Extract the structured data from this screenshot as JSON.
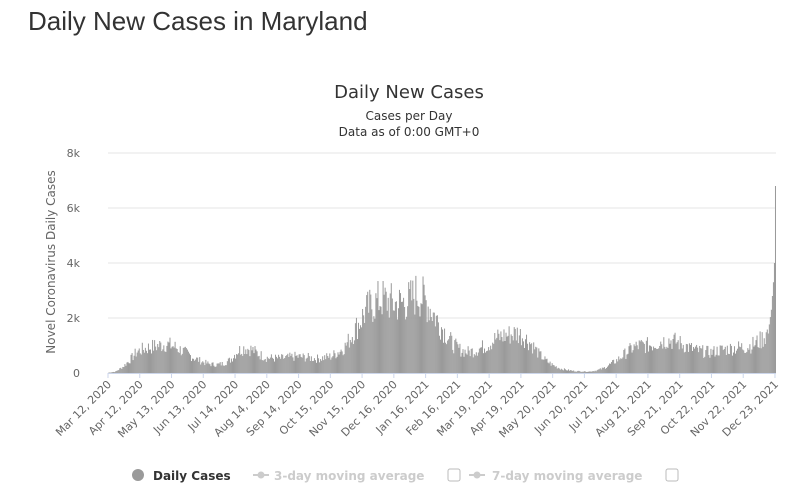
{
  "page_title": "Daily New Cases in Maryland",
  "colors": {
    "bars": "#9a9a9a",
    "grid": "#e6e6e6",
    "legend_inactive": "#cccccc"
  },
  "chart_data": {
    "type": "bar",
    "title": "Daily New Cases",
    "subtitle": "Cases per Day",
    "subtitle2": "Data as of 0:00 GMT+0",
    "ylabel": "Novel Coronavirus Daily Cases",
    "xlabel": "",
    "ylim": [
      0,
      8000
    ],
    "yticks": [
      0,
      2000,
      4000,
      6000,
      8000
    ],
    "ytick_labels": [
      "0",
      "2k",
      "4k",
      "6k",
      "8k"
    ],
    "grid": true,
    "x_start": "2020-03-12",
    "x_end": "2021-12-24",
    "xtick_labels": [
      "Mar 12, 2020",
      "Apr 12, 2020",
      "May 13, 2020",
      "Jun 13, 2020",
      "Jul 14, 2020",
      "Aug 14, 2020",
      "Sep 14, 2020",
      "Oct 15, 2020",
      "Nov 15, 2020",
      "Dec 16, 2020",
      "Jan 16, 2021",
      "Feb 16, 2021",
      "Mar 19, 2021",
      "Apr 19, 2021",
      "May 20, 2021",
      "Jun 20, 2021",
      "Jul 21, 2021",
      "Aug 21, 2021",
      "Sep 21, 2021",
      "Oct 22, 2021",
      "Nov 22, 2021",
      "Dec 23, 2021"
    ],
    "weekly_dates": [
      "2020-03-12",
      "2020-03-19",
      "2020-03-26",
      "2020-04-02",
      "2020-04-09",
      "2020-04-16",
      "2020-04-23",
      "2020-04-30",
      "2020-05-07",
      "2020-05-14",
      "2020-05-21",
      "2020-05-28",
      "2020-06-04",
      "2020-06-11",
      "2020-06-18",
      "2020-06-25",
      "2020-07-02",
      "2020-07-09",
      "2020-07-16",
      "2020-07-23",
      "2020-07-30",
      "2020-08-06",
      "2020-08-13",
      "2020-08-20",
      "2020-08-27",
      "2020-09-03",
      "2020-09-10",
      "2020-09-17",
      "2020-09-24",
      "2020-10-01",
      "2020-10-08",
      "2020-10-15",
      "2020-10-22",
      "2020-10-29",
      "2020-11-05",
      "2020-11-12",
      "2020-11-19",
      "2020-11-26",
      "2020-12-03",
      "2020-12-10",
      "2020-12-17",
      "2020-12-24",
      "2020-12-31",
      "2021-01-07",
      "2021-01-14",
      "2021-01-21",
      "2021-01-28",
      "2021-02-04",
      "2021-02-11",
      "2021-02-18",
      "2021-02-25",
      "2021-03-04",
      "2021-03-11",
      "2021-03-18",
      "2021-03-25",
      "2021-04-01",
      "2021-04-08",
      "2021-04-15",
      "2021-04-22",
      "2021-04-29",
      "2021-05-06",
      "2021-05-13",
      "2021-05-20",
      "2021-05-27",
      "2021-06-03",
      "2021-06-10",
      "2021-06-17",
      "2021-06-24",
      "2021-07-01",
      "2021-07-08",
      "2021-07-15",
      "2021-07-22",
      "2021-07-29",
      "2021-08-05",
      "2021-08-12",
      "2021-08-19",
      "2021-08-26",
      "2021-09-02",
      "2021-09-09",
      "2021-09-16",
      "2021-09-23",
      "2021-09-30",
      "2021-10-07",
      "2021-10-14",
      "2021-10-21",
      "2021-10-28",
      "2021-11-04",
      "2021-11-11",
      "2021-11-18",
      "2021-11-25",
      "2021-12-02",
      "2021-12-09",
      "2021-12-16",
      "2021-12-19",
      "2021-12-21",
      "2021-12-22",
      "2021-12-23"
    ],
    "weekly_values": [
      10,
      50,
      220,
      480,
      780,
      880,
      950,
      1000,
      1050,
      980,
      850,
      700,
      540,
      420,
      330,
      300,
      340,
      480,
      800,
      920,
      850,
      680,
      560,
      540,
      530,
      560,
      600,
      580,
      560,
      520,
      560,
      600,
      760,
      960,
      1400,
      1850,
      2300,
      2500,
      2700,
      2600,
      2500,
      2550,
      2650,
      2900,
      2700,
      2300,
      1850,
      1450,
      1050,
      850,
      760,
      810,
      920,
      1050,
      1250,
      1350,
      1400,
      1450,
      1300,
      1050,
      700,
      450,
      280,
      160,
      110,
      70,
      60,
      50,
      90,
      170,
      320,
      480,
      700,
      900,
      1000,
      1000,
      1050,
      1150,
      1200,
      1150,
      1050,
      920,
      820,
      780,
      750,
      820,
      860,
      900,
      930,
      950,
      1050,
      1200,
      1500,
      2300,
      3300,
      4000,
      6800
    ],
    "series": [
      {
        "name": "Daily Cases",
        "color": "#9a9a9a",
        "active": true
      },
      {
        "name": "3-day moving average",
        "color": "#cccccc",
        "active": false
      },
      {
        "name": "7-day moving average",
        "color": "#cccccc",
        "active": false
      }
    ]
  }
}
